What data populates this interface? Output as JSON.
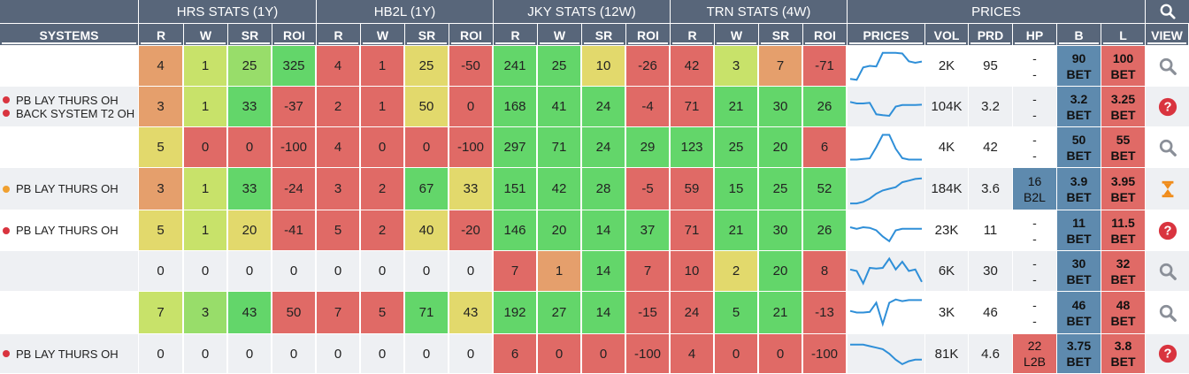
{
  "header": {
    "groups": [
      "HRS STATS (1Y)",
      "HB2L (1Y)",
      "JKY STATS (12W)",
      "TRN STATS (4W)",
      "PRICES"
    ],
    "search_icon": "search-icon",
    "columns": [
      "SYSTEMS",
      "R",
      "W",
      "SR",
      "ROI",
      "R",
      "W",
      "SR",
      "ROI",
      "R",
      "W",
      "SR",
      "ROI",
      "R",
      "W",
      "SR",
      "ROI",
      "PRICES",
      "VOL",
      "PRD",
      "HP",
      "B",
      "L",
      "VIEW"
    ]
  },
  "colors": {
    "header_bg": "#58667a",
    "green": "#63d66a",
    "light_green": "#98dd6a",
    "yellow_green": "#c8e26a",
    "yellow": "#e2d96c",
    "orange": "#e59f6c",
    "red": "#e06a66",
    "blue_bet": "#5e8aae",
    "dot_red": "#d9343f",
    "dot_orange": "#f0a030",
    "sparkline": "#2f8fd8",
    "icon_grey": "#8a8f98",
    "icon_red": "#d9343f",
    "icon_orange": "#f08c1a"
  },
  "rows": [
    {
      "systems": [],
      "stats": [
        [
          "4",
          "#e59f6c"
        ],
        [
          "1",
          "#c8e26a"
        ],
        [
          "25",
          "#98dd6a"
        ],
        [
          "325",
          "#63d66a"
        ],
        [
          "4",
          "#e06a66"
        ],
        [
          "1",
          "#e06a66"
        ],
        [
          "25",
          "#e2d96c"
        ],
        [
          "-50",
          "#e06a66"
        ],
        [
          "241",
          "#63d66a"
        ],
        [
          "25",
          "#63d66a"
        ],
        [
          "10",
          "#e2d96c"
        ],
        [
          "-26",
          "#e06a66"
        ],
        [
          "42",
          "#e06a66"
        ],
        [
          "3",
          "#c8e26a"
        ],
        [
          "7",
          "#e59f6c"
        ],
        [
          "-71",
          "#e06a66"
        ]
      ],
      "spark": [
        0.92,
        0.95,
        0.55,
        0.5,
        0.52,
        0.08,
        0.08,
        0.08,
        0.1,
        0.35,
        0.4,
        0.36
      ],
      "vol": "2K",
      "prd": "95",
      "hp": {
        "type": "dash",
        "top": "-",
        "bottom": "-"
      },
      "b": {
        "top": "90",
        "bottom": "BET"
      },
      "l": {
        "top": "100",
        "bottom": "BET"
      },
      "view": "search-icon"
    },
    {
      "systems": [
        {
          "label": "PB LAY THURS OH",
          "dot": "red"
        },
        {
          "label": "BACK SYSTEM T2 OH",
          "dot": "red"
        }
      ],
      "stats": [
        [
          "3",
          "#e59f6c"
        ],
        [
          "1",
          "#c8e26a"
        ],
        [
          "33",
          "#63d66a"
        ],
        [
          "-37",
          "#e06a66"
        ],
        [
          "2",
          "#e06a66"
        ],
        [
          "1",
          "#e06a66"
        ],
        [
          "50",
          "#e2d96c"
        ],
        [
          "0",
          "#e06a66"
        ],
        [
          "168",
          "#63d66a"
        ],
        [
          "41",
          "#63d66a"
        ],
        [
          "24",
          "#63d66a"
        ],
        [
          "-4",
          "#e06a66"
        ],
        [
          "71",
          "#e06a66"
        ],
        [
          "21",
          "#63d66a"
        ],
        [
          "30",
          "#63d66a"
        ],
        [
          "26",
          "#63d66a"
        ]
      ],
      "spark": [
        0.35,
        0.4,
        0.4,
        0.38,
        0.75,
        0.78,
        0.8,
        0.5,
        0.45,
        0.45,
        0.45,
        0.44
      ],
      "vol": "104K",
      "prd": "3.2",
      "hp": {
        "type": "dash",
        "top": "-",
        "bottom": "-"
      },
      "b": {
        "top": "3.2",
        "bottom": "BET"
      },
      "l": {
        "top": "3.25",
        "bottom": "BET"
      },
      "view": "help-icon"
    },
    {
      "systems": [],
      "stats": [
        [
          "5",
          "#e2d96c"
        ],
        [
          "0",
          "#e06a66"
        ],
        [
          "0",
          "#e06a66"
        ],
        [
          "-100",
          "#e06a66"
        ],
        [
          "4",
          "#e06a66"
        ],
        [
          "0",
          "#e06a66"
        ],
        [
          "0",
          "#e06a66"
        ],
        [
          "-100",
          "#e06a66"
        ],
        [
          "297",
          "#63d66a"
        ],
        [
          "71",
          "#63d66a"
        ],
        [
          "24",
          "#63d66a"
        ],
        [
          "29",
          "#63d66a"
        ],
        [
          "123",
          "#63d66a"
        ],
        [
          "25",
          "#63d66a"
        ],
        [
          "20",
          "#63d66a"
        ],
        [
          "6",
          "#e06a66"
        ]
      ],
      "spark": [
        0.9,
        0.9,
        0.88,
        0.86,
        0.5,
        0.1,
        0.1,
        0.55,
        0.85,
        0.9,
        0.9,
        0.9
      ],
      "vol": "4K",
      "prd": "42",
      "hp": {
        "type": "dash",
        "top": "-",
        "bottom": "-"
      },
      "b": {
        "top": "50",
        "bottom": "BET"
      },
      "l": {
        "top": "55",
        "bottom": "BET"
      },
      "view": "search-icon"
    },
    {
      "systems": [
        {
          "label": "PB LAY THURS OH",
          "dot": "orange"
        }
      ],
      "stats": [
        [
          "3",
          "#e59f6c"
        ],
        [
          "1",
          "#c8e26a"
        ],
        [
          "33",
          "#63d66a"
        ],
        [
          "-24",
          "#e06a66"
        ],
        [
          "3",
          "#e06a66"
        ],
        [
          "2",
          "#e06a66"
        ],
        [
          "67",
          "#63d66a"
        ],
        [
          "33",
          "#e2d96c"
        ],
        [
          "151",
          "#63d66a"
        ],
        [
          "42",
          "#63d66a"
        ],
        [
          "28",
          "#63d66a"
        ],
        [
          "-5",
          "#e06a66"
        ],
        [
          "59",
          "#e06a66"
        ],
        [
          "15",
          "#63d66a"
        ],
        [
          "25",
          "#63d66a"
        ],
        [
          "52",
          "#63d66a"
        ]
      ],
      "spark": [
        0.95,
        0.95,
        0.9,
        0.8,
        0.65,
        0.55,
        0.5,
        0.45,
        0.3,
        0.25,
        0.2,
        0.18
      ],
      "vol": "184K",
      "prd": "3.6",
      "hp": {
        "type": "chip",
        "top": "16",
        "bottom": "B2L",
        "color": "blue"
      },
      "b": {
        "top": "3.9",
        "bottom": "BET"
      },
      "l": {
        "top": "3.95",
        "bottom": "BET"
      },
      "view": "hourglass-icon"
    },
    {
      "systems": [
        {
          "label": "PB LAY THURS OH",
          "dot": "red"
        }
      ],
      "stats": [
        [
          "5",
          "#e2d96c"
        ],
        [
          "1",
          "#c8e26a"
        ],
        [
          "20",
          "#e2d96c"
        ],
        [
          "-41",
          "#e06a66"
        ],
        [
          "5",
          "#e06a66"
        ],
        [
          "2",
          "#e06a66"
        ],
        [
          "40",
          "#e2d96c"
        ],
        [
          "-20",
          "#e06a66"
        ],
        [
          "146",
          "#63d66a"
        ],
        [
          "20",
          "#63d66a"
        ],
        [
          "14",
          "#63d66a"
        ],
        [
          "37",
          "#63d66a"
        ],
        [
          "71",
          "#e06a66"
        ],
        [
          "21",
          "#63d66a"
        ],
        [
          "30",
          "#63d66a"
        ],
        [
          "26",
          "#63d66a"
        ]
      ],
      "spark": [
        0.4,
        0.45,
        0.4,
        0.42,
        0.5,
        0.7,
        0.85,
        0.5,
        0.45,
        0.45,
        0.45,
        0.45
      ],
      "vol": "23K",
      "prd": "11",
      "hp": {
        "type": "dash",
        "top": "-",
        "bottom": "-"
      },
      "b": {
        "top": "11",
        "bottom": "BET"
      },
      "l": {
        "top": "11.5",
        "bottom": "BET"
      },
      "view": "help-icon"
    },
    {
      "systems": [],
      "stats": [
        [
          "0",
          "#eef0f3"
        ],
        [
          "0",
          "#eef0f3"
        ],
        [
          "0",
          "#eef0f3"
        ],
        [
          "0",
          "#eef0f3"
        ],
        [
          "0",
          "#eef0f3"
        ],
        [
          "0",
          "#eef0f3"
        ],
        [
          "0",
          "#eef0f3"
        ],
        [
          "0",
          "#eef0f3"
        ],
        [
          "7",
          "#e06a66"
        ],
        [
          "1",
          "#e59f6c"
        ],
        [
          "14",
          "#63d66a"
        ],
        [
          "7",
          "#e06a66"
        ],
        [
          "10",
          "#e06a66"
        ],
        [
          "2",
          "#e2d96c"
        ],
        [
          "20",
          "#63d66a"
        ],
        [
          "8",
          "#e06a66"
        ]
      ],
      "spark": [
        0.45,
        0.5,
        0.9,
        0.4,
        0.42,
        0.4,
        0.1,
        0.45,
        0.2,
        0.5,
        0.45,
        0.85
      ],
      "vol": "6K",
      "prd": "30",
      "hp": {
        "type": "dash",
        "top": "-",
        "bottom": "-"
      },
      "b": {
        "top": "30",
        "bottom": "BET"
      },
      "l": {
        "top": "32",
        "bottom": "BET"
      },
      "view": "search-icon"
    },
    {
      "systems": [],
      "stats": [
        [
          "7",
          "#c8e26a"
        ],
        [
          "3",
          "#98dd6a"
        ],
        [
          "43",
          "#63d66a"
        ],
        [
          "50",
          "#e06a66"
        ],
        [
          "7",
          "#e06a66"
        ],
        [
          "5",
          "#e06a66"
        ],
        [
          "71",
          "#63d66a"
        ],
        [
          "43",
          "#e2d96c"
        ],
        [
          "192",
          "#63d66a"
        ],
        [
          "27",
          "#63d66a"
        ],
        [
          "14",
          "#63d66a"
        ],
        [
          "-15",
          "#e06a66"
        ],
        [
          "24",
          "#e06a66"
        ],
        [
          "5",
          "#63d66a"
        ],
        [
          "21",
          "#63d66a"
        ],
        [
          "-13",
          "#e06a66"
        ]
      ],
      "spark": [
        0.45,
        0.5,
        0.5,
        0.48,
        0.2,
        0.85,
        0.2,
        0.1,
        0.15,
        0.12,
        0.12,
        0.12
      ],
      "vol": "3K",
      "prd": "46",
      "hp": {
        "type": "dash",
        "top": "-",
        "bottom": "-"
      },
      "b": {
        "top": "46",
        "bottom": "BET"
      },
      "l": {
        "top": "48",
        "bottom": "BET"
      },
      "view": "search-icon"
    },
    {
      "systems": [
        {
          "label": "PB LAY THURS OH",
          "dot": "red"
        }
      ],
      "stats": [
        [
          "0",
          "#eef0f3"
        ],
        [
          "0",
          "#eef0f3"
        ],
        [
          "0",
          "#eef0f3"
        ],
        [
          "0",
          "#eef0f3"
        ],
        [
          "0",
          "#eef0f3"
        ],
        [
          "0",
          "#eef0f3"
        ],
        [
          "0",
          "#eef0f3"
        ],
        [
          "0",
          "#eef0f3"
        ],
        [
          "6",
          "#e06a66"
        ],
        [
          "0",
          "#e06a66"
        ],
        [
          "0",
          "#e06a66"
        ],
        [
          "-100",
          "#e06a66"
        ],
        [
          "4",
          "#e06a66"
        ],
        [
          "0",
          "#e06a66"
        ],
        [
          "0",
          "#e06a66"
        ],
        [
          "-100",
          "#e06a66"
        ]
      ],
      "spark": [
        0.2,
        0.2,
        0.2,
        0.25,
        0.3,
        0.35,
        0.5,
        0.7,
        0.85,
        0.75,
        0.7,
        0.7
      ],
      "vol": "81K",
      "prd": "4.6",
      "hp": {
        "type": "chip",
        "top": "22",
        "bottom": "L2B",
        "color": "red"
      },
      "b": {
        "top": "3.75",
        "bottom": "BET"
      },
      "l": {
        "top": "3.8",
        "bottom": "BET"
      },
      "view": "help-icon"
    }
  ]
}
